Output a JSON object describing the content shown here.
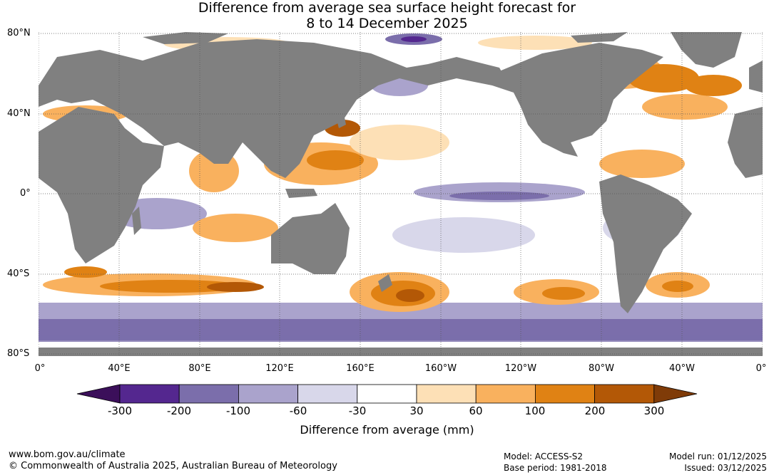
{
  "title": {
    "line1": "Difference from average sea surface height forecast for",
    "line2": "8 to 14 December 2025"
  },
  "map": {
    "lat_labels": [
      "80°N",
      "40°N",
      "0°",
      "40°S",
      "80°S"
    ],
    "lon_labels": [
      "0°",
      "40°E",
      "80°E",
      "120°E",
      "160°E",
      "160°W",
      "120°W",
      "80°W",
      "40°W",
      "0°"
    ],
    "land_color": "#808080",
    "ocean_color": "#ffffff",
    "gridline_style": "dotted"
  },
  "colorbar": {
    "ticks": [
      "-300",
      "-200",
      "-100",
      "-60",
      "-30",
      "30",
      "60",
      "100",
      "200",
      "300"
    ],
    "colors": [
      "#3b0f5a",
      "#54278f",
      "#7b6eab",
      "#aaa3cc",
      "#d8d7ea",
      "#ffffff",
      "#fde0b6",
      "#f9b15e",
      "#e08214",
      "#b35806",
      "#7f3b08"
    ],
    "label": "Difference from average (mm)"
  },
  "footer": {
    "url": "www.bom.gov.au/climate",
    "copyright": "© Commonwealth of Australia 2025, Australian Bureau of Meteorology",
    "model": "Model: ACCESS-S2",
    "base_period": "Base period: 1981-2018",
    "model_run": "Model run: 01/12/2025",
    "issued": "Issued: 03/12/2025"
  }
}
